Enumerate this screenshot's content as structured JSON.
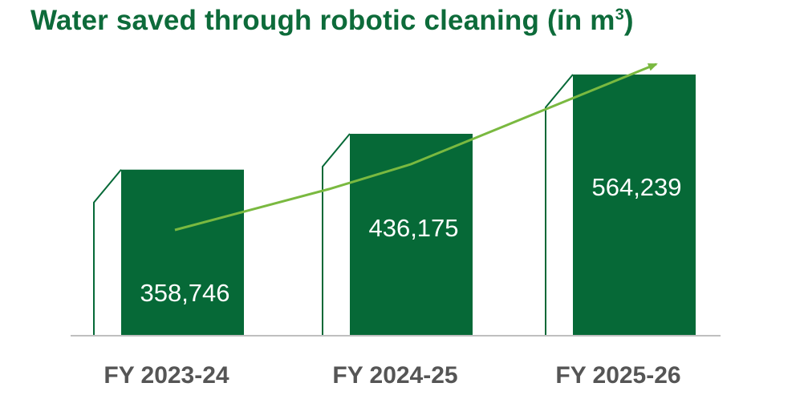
{
  "chart_data": {
    "type": "bar",
    "title": "Water saved through robotic cleaning (in m",
    "title_superscript": "3",
    "title_suffix": ")",
    "categories": [
      "FY 2023-24",
      "FY 2024-25",
      "FY 2025-26"
    ],
    "values": [
      358746,
      436175,
      564239
    ],
    "value_labels": [
      "358,746",
      "436,175",
      "564,239"
    ],
    "trend_arrow": true,
    "grid": false,
    "colors": {
      "bar": "#066937",
      "arrow": "#7ab940",
      "title": "#0d6b3a",
      "axis_label": "#555555",
      "baseline": "#bfbfbf"
    }
  }
}
